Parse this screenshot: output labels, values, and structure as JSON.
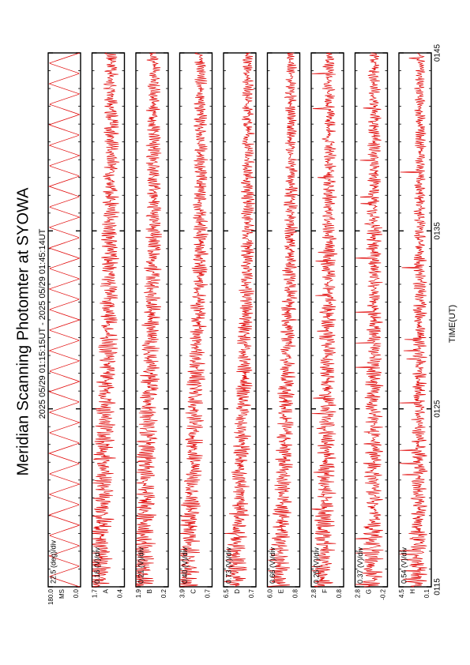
{
  "chart_data": {
    "type": "line",
    "title": "Meridian Scanning Photomter at SYOWA",
    "subtitle": "2025 05/29 01:15:15UT - 2025 05/29 01:45:14UT",
    "xlabel": "TIME(UT)",
    "x_ticks": [
      "0115",
      "0125",
      "0135",
      "0145"
    ],
    "x_range_minutes": [
      0,
      30
    ],
    "grid": false,
    "series_color": "#e00000",
    "panels": [
      {
        "name": "MS",
        "scale_label": "22.5 (deg)/div",
        "ymax_label": "180.0",
        "ymin_label": "0.0",
        "ylim": [
          0,
          180
        ],
        "mode": "scan"
      },
      {
        "name": "A",
        "scale_label": "0.16 (V)/div",
        "ymax_label": "1.7",
        "ymin_label": "0.4",
        "ylim": [
          0.4,
          1.7
        ],
        "mode": "trend",
        "start_level": 0.75,
        "end_level": 0.42,
        "noise": 0.35,
        "spikes": false
      },
      {
        "name": "B",
        "scale_label": "0.21 (V)/div",
        "ymax_label": "1.9",
        "ymin_label": "0.2",
        "ylim": [
          0.2,
          1.9
        ],
        "mode": "trend",
        "start_level": 0.8,
        "end_level": 0.45,
        "noise": 0.33,
        "spikes": false
      },
      {
        "name": "C",
        "scale_label": "0.40 (V)/div",
        "ymax_label": "3.9",
        "ymin_label": "0.7",
        "ylim": [
          0.7,
          3.9
        ],
        "mode": "trend",
        "start_level": 0.75,
        "end_level": 0.35,
        "noise": 0.3,
        "spikes": false
      },
      {
        "name": "D",
        "scale_label": "0.73 (V)/div",
        "ymax_label": "6.5",
        "ymin_label": "0.7",
        "ylim": [
          0.7,
          6.5
        ],
        "mode": "trend",
        "start_level": 0.6,
        "end_level": 0.25,
        "noise": 0.28,
        "spikes": false
      },
      {
        "name": "E",
        "scale_label": "0.66 (V)/div",
        "ymax_label": "6.0",
        "ymin_label": "0.8",
        "ylim": [
          0.8,
          6.0
        ],
        "mode": "trend",
        "start_level": 0.62,
        "end_level": 0.28,
        "noise": 0.28,
        "spikes": false
      },
      {
        "name": "F",
        "scale_label": "0.25 (V)/div",
        "ymax_label": "2.8",
        "ymin_label": "0.8",
        "ylim": [
          0.8,
          2.8
        ],
        "mode": "trend",
        "start_level": 0.6,
        "end_level": 0.45,
        "noise": 0.3,
        "spikes": true
      },
      {
        "name": "G",
        "scale_label": "0.37 (V)/div",
        "ymax_label": "2.8",
        "ymin_label": "-0.2",
        "ylim": [
          -0.2,
          2.8
        ],
        "mode": "trend",
        "start_level": 0.45,
        "end_level": 0.4,
        "noise": 0.3,
        "spikes": true
      },
      {
        "name": "H",
        "scale_label": "0.54 (V)/div",
        "ymax_label": "4.5",
        "ymin_label": "0.1",
        "ylim": [
          0.1,
          4.5
        ],
        "mode": "trend",
        "start_level": 0.4,
        "end_level": 0.35,
        "noise": 0.25,
        "spikes": true
      }
    ]
  }
}
